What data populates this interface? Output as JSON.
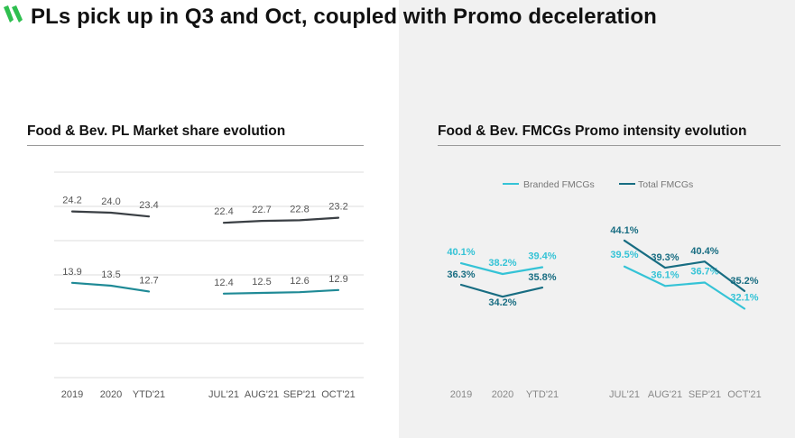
{
  "page": {
    "title": "PLs pick up in Q3 and Oct, coupled with Promo deceleration"
  },
  "colors": {
    "accent_green": "#2fbf4f",
    "dark_line": "#3a3f44",
    "teal_line": "#1f8a96",
    "light_teal": "#35c3d6",
    "dark_teal": "#186d82",
    "grid": "#dddddd"
  },
  "chart_data": [
    {
      "type": "line",
      "title": "Food & Bev. PL Market share evolution",
      "categories": [
        "2019",
        "2020",
        "YTD'21",
        "JUL'21",
        "AUG'21",
        "SEP'21",
        "OCT'21"
      ],
      "series": [
        {
          "values": [
            24.2,
            24.0,
            23.4,
            22.4,
            22.7,
            22.8,
            23.2
          ],
          "color": "#3a3f44"
        },
        {
          "values": [
            13.9,
            13.5,
            12.7,
            12.4,
            12.5,
            12.6,
            12.9
          ],
          "color": "#1f8a96"
        }
      ],
      "labels_top": [
        "24.2",
        "24.0",
        "23.4",
        "22.4",
        "22.7",
        "22.8",
        "23.2"
      ],
      "labels_bottom": [
        "13.9",
        "13.5",
        "12.7",
        "12.4",
        "12.5",
        "12.6",
        "12.9"
      ],
      "grid": true,
      "legend": "none"
    },
    {
      "type": "line",
      "title": "Food & Bev. FMCGs Promo intensity evolution",
      "categories": [
        "2019",
        "2020",
        "YTD'21",
        "JUL'21",
        "AUG'21",
        "SEP'21",
        "OCT'21"
      ],
      "series": [
        {
          "name": "Branded FMCGs",
          "values": [
            40.1,
            38.2,
            39.4,
            39.5,
            36.1,
            36.7,
            32.1
          ],
          "labels": [
            "40.1%",
            "38.2%",
            "39.4%",
            "39.5%",
            "36.1%",
            "36.7%",
            "32.1%"
          ],
          "color": "#35c3d6"
        },
        {
          "name": "Total FMCGs",
          "values": [
            36.3,
            34.2,
            35.8,
            44.1,
            39.3,
            40.4,
            35.2
          ],
          "labels": [
            "36.3%",
            "34.2%",
            "35.8%",
            "44.1%",
            "39.3%",
            "40.4%",
            "35.2%"
          ],
          "color": "#186d82"
        }
      ],
      "grid": false,
      "legend": "top"
    }
  ]
}
